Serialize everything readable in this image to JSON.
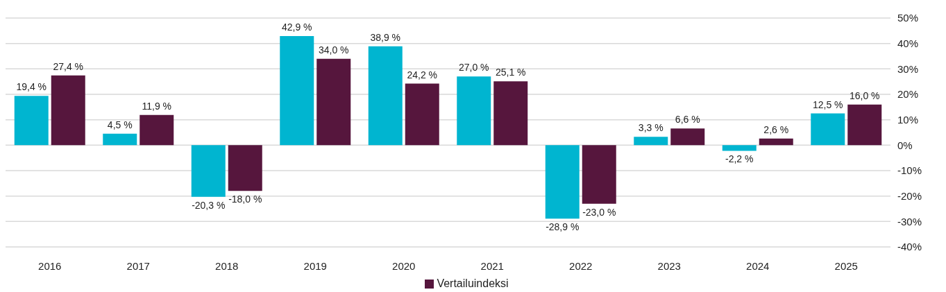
{
  "chart_data": {
    "type": "bar",
    "categories": [
      "2016",
      "2017",
      "2018",
      "2019",
      "2020",
      "2021",
      "2022",
      "2023",
      "2024",
      "2025"
    ],
    "series": [
      {
        "color": "#00b5d0",
        "values": [
          19.4,
          4.5,
          -20.3,
          42.9,
          38.9,
          27.0,
          -28.9,
          3.3,
          -2.2,
          12.5
        ],
        "value_labels": [
          "19,4 %",
          "4,5 %",
          "-20,3 %",
          "42,9 %",
          "38,9 %",
          "27,0 %",
          "-28,9 %",
          "3,3 %",
          "-2,2 %",
          "12,5 %"
        ]
      },
      {
        "name": "Vertailuindeksi",
        "color": "#56163d",
        "values": [
          27.4,
          11.9,
          -18.0,
          34.0,
          24.2,
          25.1,
          -23.0,
          6.6,
          2.6,
          16.0
        ],
        "value_labels": [
          "27,4 %",
          "11,9 %",
          "-18,0 %",
          "34,0 %",
          "24,2 %",
          "25,1 %",
          "-23,0 %",
          "6,6 %",
          "2,6 %",
          "16,0 %"
        ]
      }
    ],
    "ylim": [
      -40,
      50
    ],
    "yticks": [
      {
        "value": -40,
        "label": "-40%"
      },
      {
        "value": -30,
        "label": "-30%"
      },
      {
        "value": -20,
        "label": "-20%"
      },
      {
        "value": -10,
        "label": "-10%"
      },
      {
        "value": 0,
        "label": "0%"
      },
      {
        "value": 10,
        "label": "10%"
      },
      {
        "value": 20,
        "label": "20%"
      },
      {
        "value": 30,
        "label": "30%"
      },
      {
        "value": 40,
        "label": "40%"
      },
      {
        "value": 50,
        "label": "50%"
      }
    ],
    "grid": "y",
    "legend": "bottom"
  }
}
